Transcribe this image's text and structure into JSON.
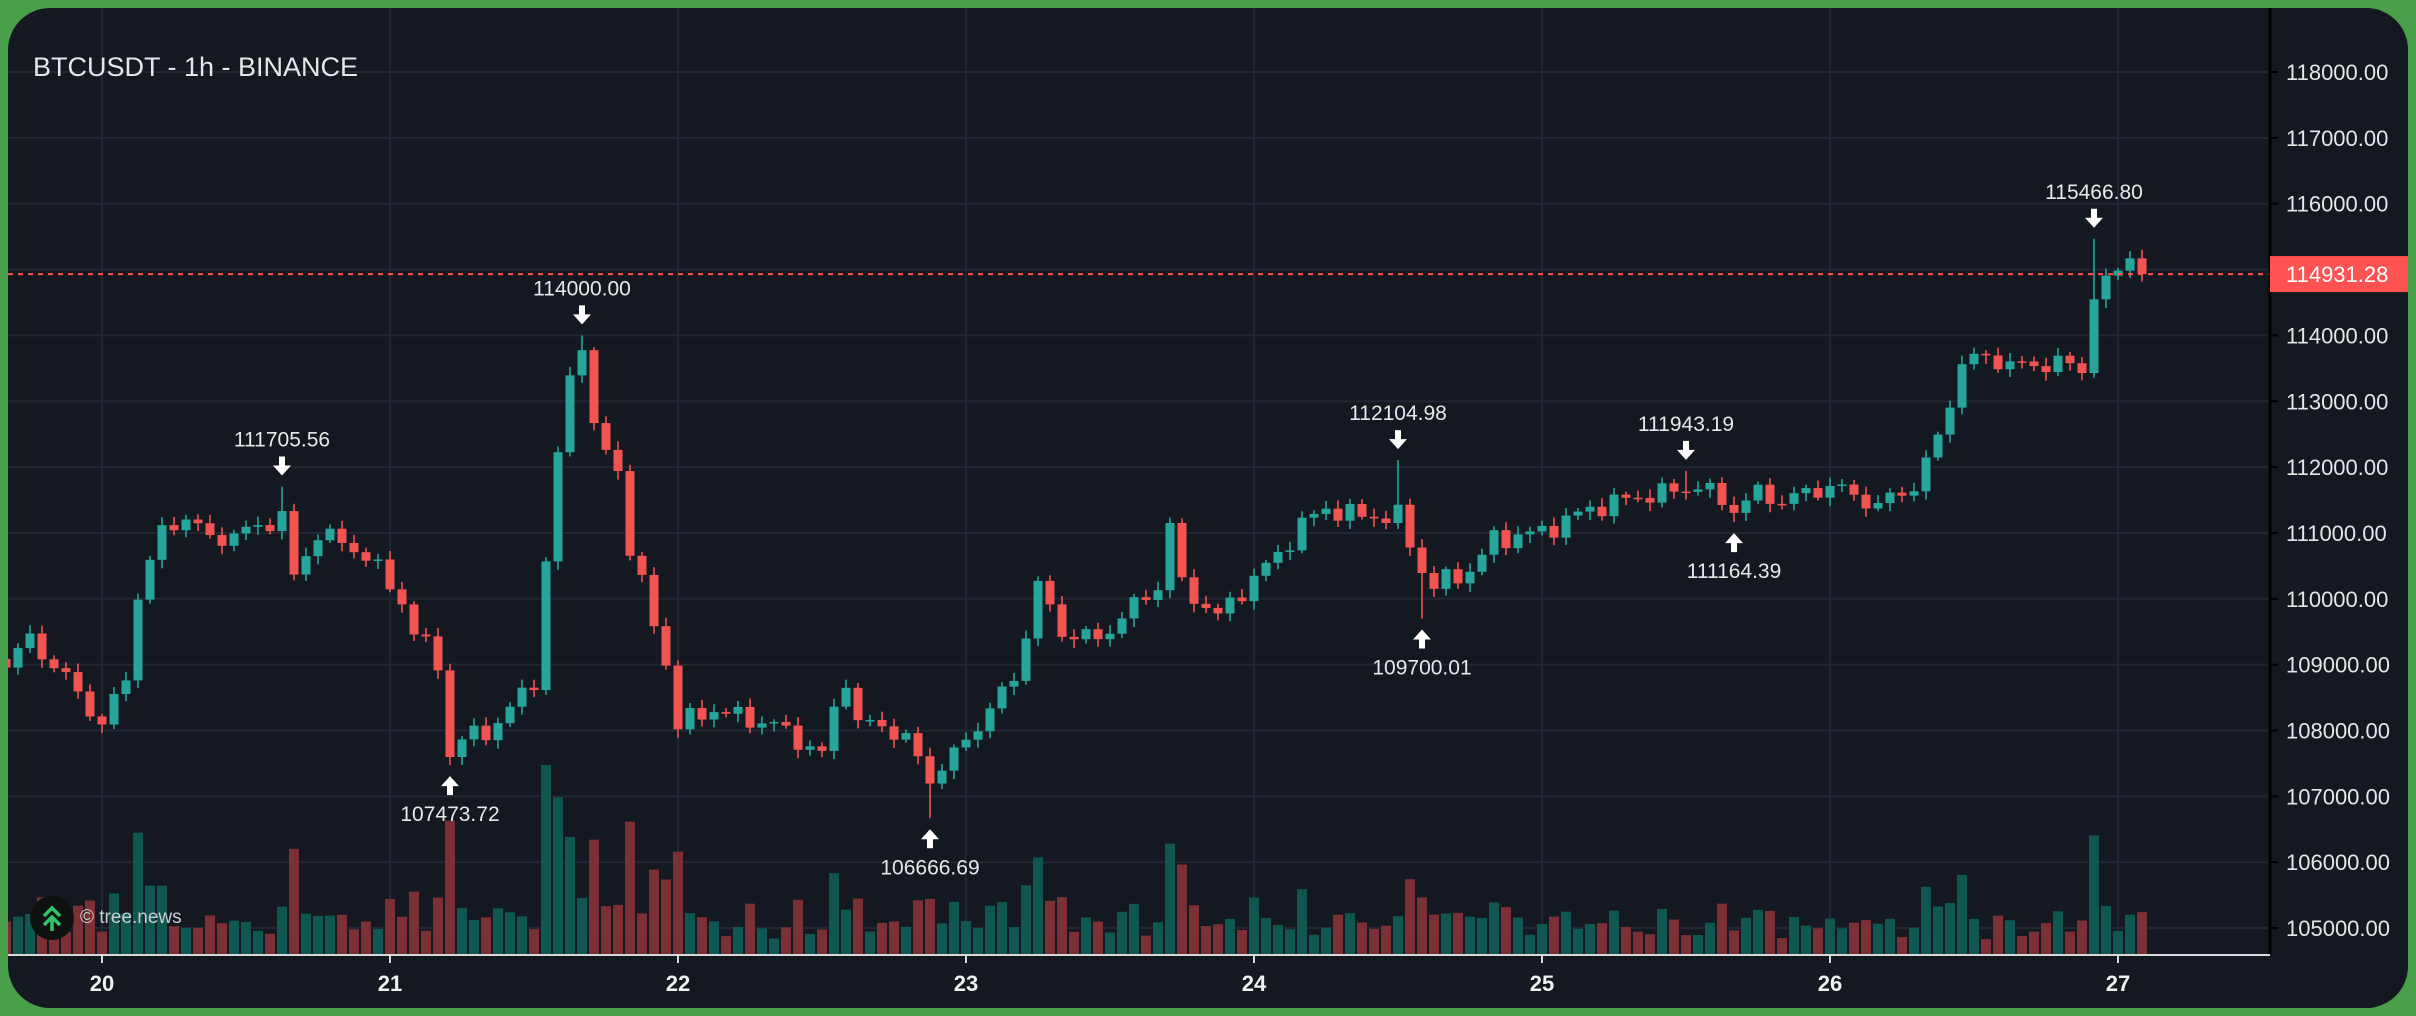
{
  "header": {
    "title": "BTCUSDT - 1h - BINANCE"
  },
  "watermark": {
    "text": "© tree.news"
  },
  "colors": {
    "up": "#26a69a",
    "down": "#f05350",
    "vol_up": "#0f5750",
    "vol_down": "#7a3034",
    "grid": "#212632",
    "bg": "#141821",
    "price_line": "#ff5252"
  },
  "chart_data": {
    "type": "candlestick",
    "title": "BTCUSDT - 1h - BINANCE",
    "interval": "1h",
    "x_unit": "hours since 20th 00:00",
    "x_range": [
      -8,
      170
    ],
    "x_ticks": [
      {
        "h": 0,
        "label": "20"
      },
      {
        "h": 24,
        "label": "21"
      },
      {
        "h": 48,
        "label": "22"
      },
      {
        "h": 72,
        "label": "23"
      },
      {
        "h": 96,
        "label": "24"
      },
      {
        "h": 120,
        "label": "25"
      },
      {
        "h": 144,
        "label": "26"
      },
      {
        "h": 168,
        "label": "27"
      }
    ],
    "y_ticks": [
      "118000.00",
      "117000.00",
      "116000.00",
      "115000.00",
      "114000.00",
      "113000.00",
      "112000.00",
      "111000.00",
      "110000.00",
      "109000.00",
      "108000.00",
      "107000.00",
      "106000.00",
      "105000.00"
    ],
    "ylim": [
      104550,
      118400
    ],
    "last_price": "114931.28",
    "close_path": [
      [
        -8,
        109028
      ],
      [
        -6,
        109379
      ],
      [
        -3,
        108794
      ],
      [
        0,
        108091
      ],
      [
        2,
        108794
      ],
      [
        3,
        110081
      ],
      [
        5,
        111017
      ],
      [
        7,
        111252
      ],
      [
        9,
        110900
      ],
      [
        12,
        111017
      ],
      [
        15,
        111252
      ],
      [
        16,
        110315
      ],
      [
        18,
        111017
      ],
      [
        22,
        110666
      ],
      [
        25,
        109964
      ],
      [
        26,
        109496
      ],
      [
        28,
        109028
      ],
      [
        29,
        107623
      ],
      [
        30,
        107857
      ],
      [
        33,
        108091
      ],
      [
        35,
        108560
      ],
      [
        36,
        108794
      ],
      [
        38,
        112188
      ],
      [
        39,
        113359
      ],
      [
        40,
        113944
      ],
      [
        41,
        112539
      ],
      [
        43,
        111954
      ],
      [
        44,
        110783
      ],
      [
        45,
        110198
      ],
      [
        47,
        109028
      ],
      [
        48,
        108091
      ],
      [
        51,
        108325
      ],
      [
        53,
        108208
      ],
      [
        56,
        108091
      ],
      [
        58,
        107857
      ],
      [
        60,
        107623
      ],
      [
        61,
        108325
      ],
      [
        62,
        108794
      ],
      [
        63,
        108091
      ],
      [
        65,
        108091
      ],
      [
        67,
        107857
      ],
      [
        69,
        107272
      ],
      [
        71,
        107623
      ],
      [
        74,
        108325
      ],
      [
        76,
        108794
      ],
      [
        78,
        110198
      ],
      [
        80,
        109496
      ],
      [
        83,
        109379
      ],
      [
        85,
        109730
      ],
      [
        88,
        110198
      ],
      [
        89,
        111135
      ],
      [
        90,
        110198
      ],
      [
        93,
        109730
      ],
      [
        96,
        110315
      ],
      [
        98,
        110666
      ],
      [
        100,
        111135
      ],
      [
        102,
        111369
      ],
      [
        105,
        111252
      ],
      [
        108,
        111252
      ],
      [
        110,
        110432
      ],
      [
        111,
        110198
      ],
      [
        114,
        110432
      ],
      [
        116,
        110900
      ],
      [
        120,
        111017
      ],
      [
        124,
        111369
      ],
      [
        128,
        111556
      ],
      [
        130,
        111603
      ],
      [
        133,
        111720
      ],
      [
        136,
        111369
      ],
      [
        138,
        111603
      ],
      [
        140,
        111486
      ],
      [
        144,
        111720
      ],
      [
        148,
        111416
      ],
      [
        151,
        111720
      ],
      [
        153,
        112422
      ],
      [
        155,
        113593
      ],
      [
        157,
        113664
      ],
      [
        160,
        113523
      ],
      [
        163,
        113593
      ],
      [
        165,
        113476
      ],
      [
        166,
        114646
      ],
      [
        167,
        114764
      ],
      [
        169,
        115232
      ],
      [
        170,
        114931
      ]
    ],
    "annotations": [
      {
        "h": 15,
        "type": "high",
        "value": "111705.56"
      },
      {
        "h": 29,
        "type": "low",
        "value": "107473.72"
      },
      {
        "h": 40,
        "type": "high",
        "value": "114000.00"
      },
      {
        "h": 69,
        "type": "low",
        "value": "106666.69"
      },
      {
        "h": 108,
        "type": "high",
        "value": "112104.98"
      },
      {
        "h": 110,
        "type": "low",
        "value": "109700.01"
      },
      {
        "h": 132,
        "type": "high",
        "value": "111943.19"
      },
      {
        "h": 136,
        "type": "low",
        "value": "111164.39"
      },
      {
        "h": 166,
        "type": "high",
        "value": "115466.80"
      }
    ],
    "legend": "none",
    "grid": true
  }
}
